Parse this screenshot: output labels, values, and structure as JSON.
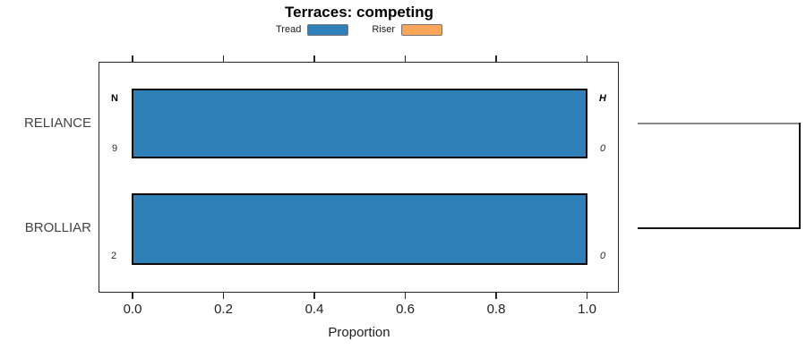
{
  "chart_data": {
    "type": "bar",
    "orientation": "horizontal",
    "stacked": true,
    "title": "Terraces: competing",
    "xlabel": "Proportion",
    "ylabel": "",
    "xlim": [
      0,
      1
    ],
    "x_ticks": [
      0.0,
      0.2,
      0.4,
      0.6,
      0.8,
      1.0
    ],
    "x_tick_labels": [
      "0.0",
      "0.2",
      "0.4",
      "0.6",
      "0.8",
      "1.0"
    ],
    "categories": [
      "RELIANCE",
      "BROLLIAR"
    ],
    "series": [
      {
        "name": "Tread",
        "color": "#2e81b8",
        "values": [
          1.0,
          1.0
        ]
      },
      {
        "name": "Riser",
        "color": "#f9a65a",
        "values": [
          0.0,
          0.0
        ]
      }
    ],
    "legend_position": "top",
    "grid": false,
    "annotations": {
      "left_header": "N",
      "right_header": "H",
      "rows": [
        {
          "category": "RELIANCE",
          "N": "9",
          "H": "0"
        },
        {
          "category": "BROLLIAR",
          "N": "2",
          "H": "0"
        }
      ]
    }
  },
  "bracket": {
    "description": "tree-join bracket connecting RELIANCE and BROLLIAR rows",
    "top_color": "#8a8a8a",
    "stem_color": "#141414"
  }
}
